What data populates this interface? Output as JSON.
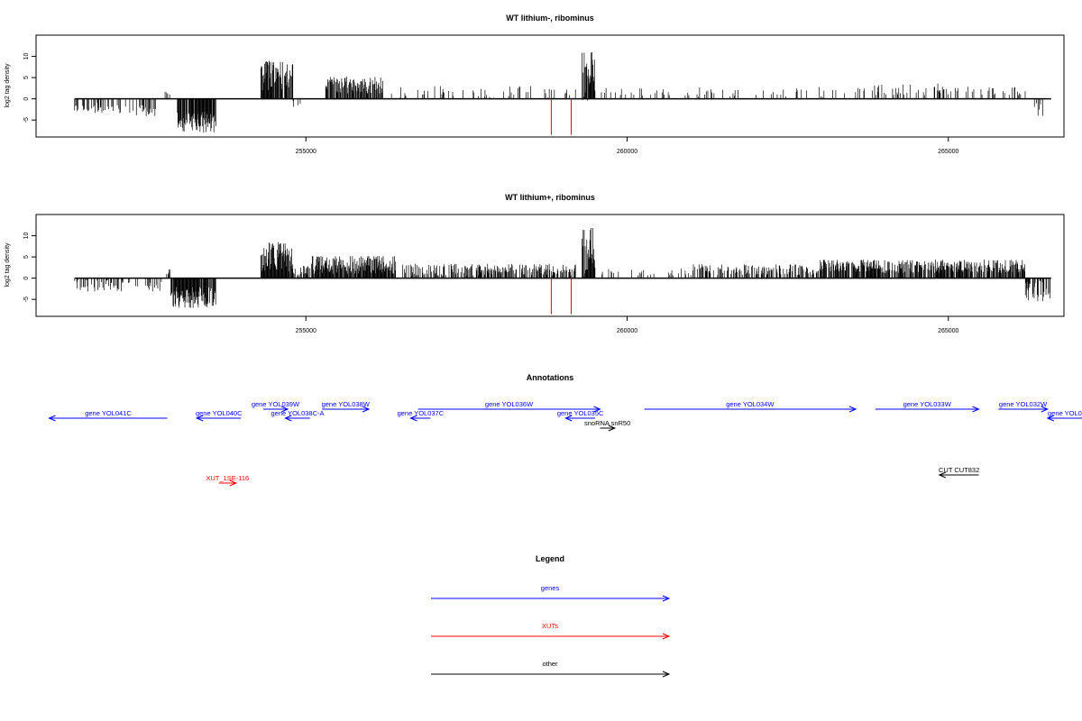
{
  "colors": {
    "signal": "#000000",
    "marker": "#ff0000",
    "gene": "#0000ff",
    "xut": "#ff0000",
    "other": "#000000"
  },
  "chart_data": [
    {
      "type": "bar",
      "title": "WT lithium-, ribominus",
      "ylabel": "log2 tag density",
      "xlim": [
        250800,
        266800
      ],
      "ylim": [
        -9,
        15
      ],
      "x_ticks": [
        255000,
        260000,
        265000
      ],
      "y_ticks": [
        -5,
        0,
        5,
        10
      ],
      "markers_x": [
        258820,
        259130
      ],
      "marker_depth": -8.5,
      "regions": [
        {
          "start": 251400,
          "end": 252200,
          "mean": -2.2,
          "amp": 1.2,
          "density": 0.35
        },
        {
          "start": 252250,
          "end": 252700,
          "mean": -2.8,
          "amp": 1.3,
          "density": 0.3
        },
        {
          "start": 252800,
          "end": 252900,
          "mean": 1.5,
          "amp": 0.5,
          "density": 0.5
        },
        {
          "start": 253000,
          "end": 253600,
          "mean": -5.5,
          "amp": 2.5,
          "density": 0.95
        },
        {
          "start": 254300,
          "end": 254800,
          "mean": 5.5,
          "amp": 3.5,
          "density": 0.95
        },
        {
          "start": 254800,
          "end": 255100,
          "mean": -1.2,
          "amp": 0.8,
          "density": 0.2
        },
        {
          "start": 255300,
          "end": 256200,
          "mean": 3.2,
          "amp": 2.0,
          "density": 0.75
        },
        {
          "start": 256300,
          "end": 259200,
          "mean": 1.6,
          "amp": 1.4,
          "density": 0.12
        },
        {
          "start": 259300,
          "end": 259500,
          "mean": 5.5,
          "amp": 6.0,
          "density": 1.0
        },
        {
          "start": 259600,
          "end": 263400,
          "mean": 1.6,
          "amp": 1.2,
          "density": 0.1
        },
        {
          "start": 263500,
          "end": 265400,
          "mean": 2.2,
          "amp": 1.4,
          "density": 0.25
        },
        {
          "start": 265500,
          "end": 266200,
          "mean": 1.8,
          "amp": 1.0,
          "density": 0.2
        },
        {
          "start": 266300,
          "end": 266600,
          "mean": -2.5,
          "amp": 2.0,
          "density": 0.2
        }
      ]
    },
    {
      "type": "bar",
      "title": "WT lithium+, ribominus",
      "ylabel": "log2 tag density",
      "xlim": [
        250800,
        266800
      ],
      "ylim": [
        -9,
        15
      ],
      "x_ticks": [
        255000,
        260000,
        265000
      ],
      "y_ticks": [
        -5,
        0,
        5,
        10
      ],
      "markers_x": [
        258820,
        259130
      ],
      "marker_depth": -8.5,
      "regions": [
        {
          "start": 251400,
          "end": 252300,
          "mean": -1.8,
          "amp": 1.4,
          "density": 0.4
        },
        {
          "start": 252350,
          "end": 252750,
          "mean": -2.0,
          "amp": 1.2,
          "density": 0.35
        },
        {
          "start": 252800,
          "end": 252900,
          "mean": 1.5,
          "amp": 0.6,
          "density": 0.5
        },
        {
          "start": 252900,
          "end": 253600,
          "mean": -4.5,
          "amp": 2.5,
          "density": 0.95
        },
        {
          "start": 254300,
          "end": 254800,
          "mean": 5.0,
          "amp": 3.5,
          "density": 0.95
        },
        {
          "start": 254800,
          "end": 255100,
          "mean": 2.0,
          "amp": 1.5,
          "density": 0.5
        },
        {
          "start": 255100,
          "end": 256400,
          "mean": 3.2,
          "amp": 2.2,
          "density": 0.9
        },
        {
          "start": 256500,
          "end": 259200,
          "mean": 2.0,
          "amp": 1.4,
          "density": 0.55
        },
        {
          "start": 259300,
          "end": 259500,
          "mean": 5.5,
          "amp": 6.5,
          "density": 1.0
        },
        {
          "start": 259600,
          "end": 261000,
          "mean": 1.5,
          "amp": 1.0,
          "density": 0.15
        },
        {
          "start": 261000,
          "end": 263000,
          "mean": 2.0,
          "amp": 1.3,
          "density": 0.5
        },
        {
          "start": 263000,
          "end": 266200,
          "mean": 2.8,
          "amp": 1.6,
          "density": 0.75
        },
        {
          "start": 266200,
          "end": 266600,
          "mean": -3.0,
          "amp": 2.5,
          "density": 0.5
        }
      ]
    }
  ],
  "annotations": {
    "title": "Annotations",
    "features": [
      {
        "label": "gene YOL041C",
        "start": 251000,
        "end": 253400,
        "strand": "-",
        "type": "gene",
        "row": 1
      },
      {
        "label": "gene YOL040C",
        "start": 254000,
        "end": 254900,
        "strand": "-",
        "type": "gene",
        "row": 1
      },
      {
        "label": "gene YOL039W",
        "start": 255350,
        "end": 255850,
        "strand": "+",
        "type": "gene",
        "row": 0
      },
      {
        "label": "gene YOL038C-A",
        "start": 255800,
        "end": 256300,
        "strand": "-",
        "type": "gene",
        "row": 1
      },
      {
        "label": "gene YOL038W",
        "start": 256550,
        "end": 257500,
        "strand": "+",
        "type": "gene",
        "row": 0
      },
      {
        "label": "gene YOL037C",
        "start": 258350,
        "end": 258750,
        "strand": "-",
        "type": "gene",
        "row": 1
      },
      {
        "label": "gene YOL036W",
        "start": 258500,
        "end": 262200,
        "strand": "+",
        "type": "gene",
        "row": 0
      },
      {
        "label": "gene YOL035C",
        "start": 261500,
        "end": 262100,
        "strand": "-",
        "type": "gene",
        "row": 1
      },
      {
        "label": "snoRNA snR50",
        "start": 262200,
        "end": 262500,
        "strand": "+",
        "type": "other",
        "row": 2
      },
      {
        "label": "gene YOL034W",
        "start": 263100,
        "end": 267400,
        "strand": "+",
        "type": "gene",
        "row": 0
      },
      {
        "label": "gene YOL033W",
        "start": 267800,
        "end": 269900,
        "strand": "+",
        "type": "gene",
        "row": 0
      },
      {
        "label": "gene YOL032W",
        "start": 270300,
        "end": 271300,
        "strand": "+",
        "type": "gene",
        "row": 0
      },
      {
        "label": "gene YOL0",
        "start": 271300,
        "end": 272100,
        "strand": "-",
        "type": "gene",
        "row": 1
      },
      {
        "label": "XUT_1SE-116",
        "start": 254450,
        "end": 254800,
        "strand": "+",
        "type": "xut",
        "row": 4
      },
      {
        "label": "CUT CUT832",
        "start": 269100,
        "end": 269900,
        "strand": "-",
        "type": "other",
        "row": 3
      }
    ],
    "xlim": [
      250000,
      272000
    ]
  },
  "legend": {
    "title": "Legend",
    "items": [
      {
        "label": "genes",
        "type": "gene"
      },
      {
        "label": "XUTs",
        "type": "xut"
      },
      {
        "label": "other",
        "type": "other"
      }
    ]
  }
}
